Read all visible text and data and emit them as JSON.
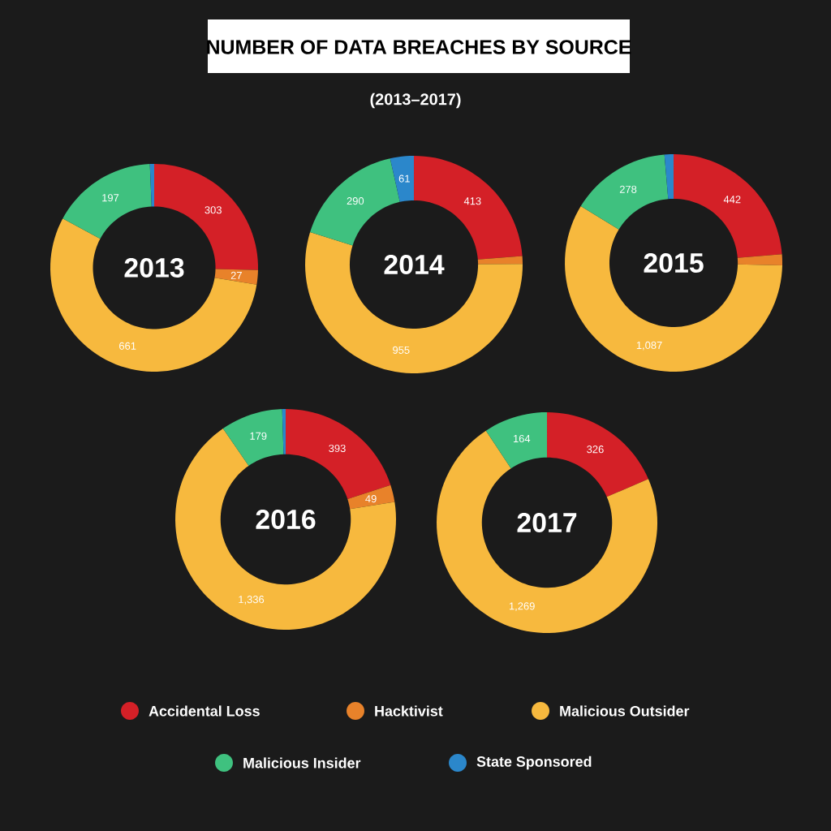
{
  "chart_data": [
    {
      "type": "donut",
      "title": "2013",
      "values": [
        303,
        27,
        661,
        197,
        8
      ],
      "value_labels": [
        "303",
        "27",
        "661",
        "197",
        null
      ],
      "colors": [
        "#d42027",
        "#e8822a",
        "#f7b93e",
        "#3fc17f",
        "#2b87cb"
      ],
      "annotations": [
        "NUMBER OF DATA BREACHES BY SOURCE",
        "(2013–2017)"
      ]
    },
    {
      "type": "donut",
      "title": "2014",
      "values": [
        413,
        20,
        955,
        290,
        61
      ],
      "value_labels": [
        "413",
        null,
        "955",
        "290",
        "61"
      ],
      "colors": [
        "#d42027",
        "#e8822a",
        "#f7b93e",
        "#3fc17f",
        "#2b87cb"
      ]
    },
    {
      "type": "donut",
      "title": "2015",
      "values": [
        442,
        30,
        1087,
        278,
        25
      ],
      "value_labels": [
        "442",
        null,
        "1,087",
        "278",
        null
      ],
      "colors": [
        "#d42027",
        "#e8822a",
        "#f7b93e",
        "#3fc17f",
        "#2b87cb"
      ]
    },
    {
      "type": "donut",
      "title": "2016",
      "values": [
        393,
        49,
        1336,
        179,
        10
      ],
      "value_labels": [
        "393",
        "49",
        "1,336",
        "179",
        null
      ],
      "colors": [
        "#d42027",
        "#e8822a",
        "#f7b93e",
        "#3fc17f",
        "#2b87cb"
      ]
    },
    {
      "type": "donut",
      "title": "2017",
      "categories": [
        "Accidental Loss",
        "Hacktivist",
        "Malicious Outsider",
        "Malicious Insider",
        "State Sponsored"
      ],
      "values": [
        326,
        0,
        1269,
        164,
        0
      ],
      "value_labels": [
        "326",
        null,
        "1,269",
        "164",
        null
      ],
      "colors": [
        "#d42027",
        "#e8822a",
        "#f7b93e",
        "#3fc17f",
        "#2b87cb"
      ],
      "legend": "bottom"
    }
  ]
}
